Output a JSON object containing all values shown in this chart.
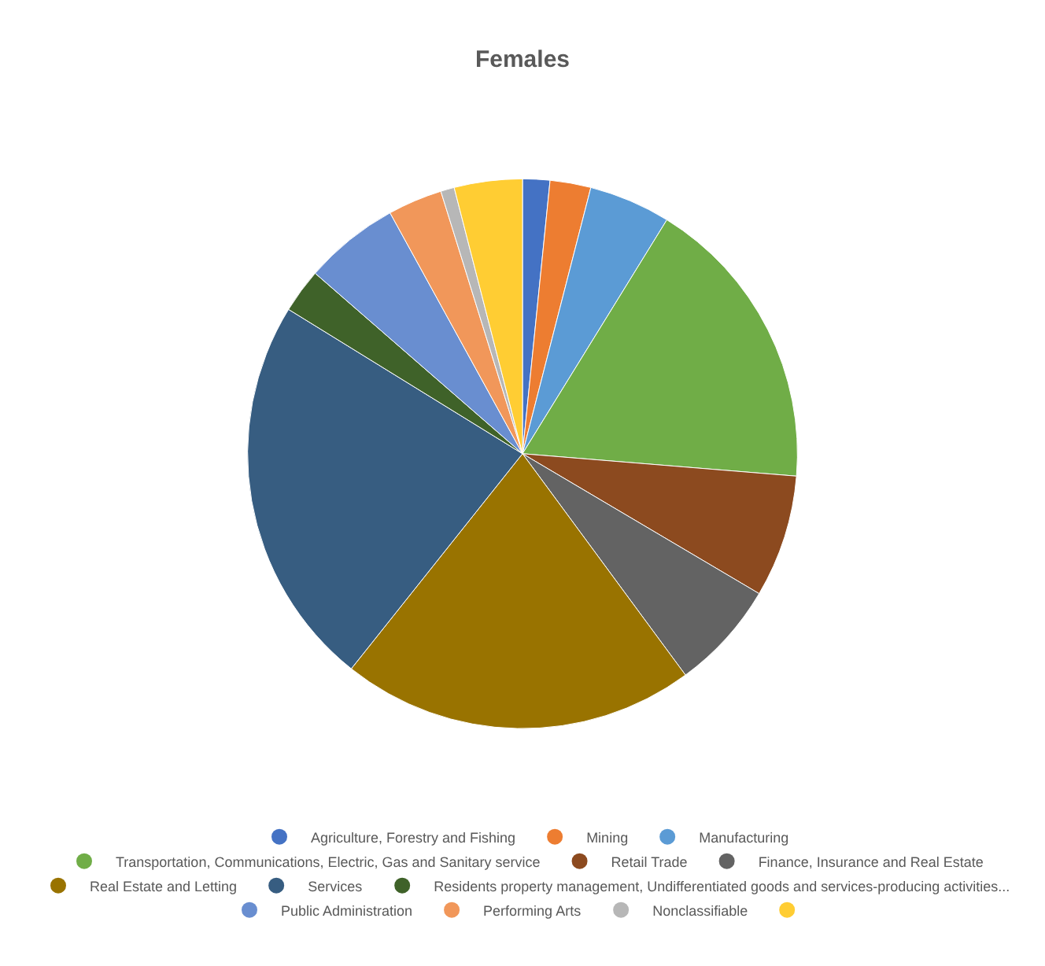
{
  "chart_data": {
    "type": "pie",
    "title": "Females",
    "categories": [
      "Agriculture, Forestry and Fishing",
      "Mining",
      "Manufacturing",
      "Transportation, Communications, Electric, Gas and Sanitary service",
      "Retail Trade",
      "Finance, Insurance and Real Estate",
      "Real Estate and Letting",
      "Services",
      "Residents property management, Undifferentiated goods and services-producing activities...",
      "Public Administration",
      "Performing Arts",
      "Nonclassifiable",
      null
    ],
    "values": [
      1.6,
      2.4,
      4.8,
      17.5,
      7.2,
      6.4,
      20.8,
      23.1,
      2.6,
      5.6,
      3.2,
      0.8,
      4.0
    ],
    "colors": [
      "#4472c4",
      "#ed7d31",
      "#5b9bd5",
      "#70ad47",
      "#8c4a1f",
      "#636363",
      "#997300",
      "#375d81",
      "#3f6229",
      "#698ed0",
      "#f1975a",
      "#b7b7b7",
      "#ffcd33"
    ],
    "legend": "bottom"
  }
}
